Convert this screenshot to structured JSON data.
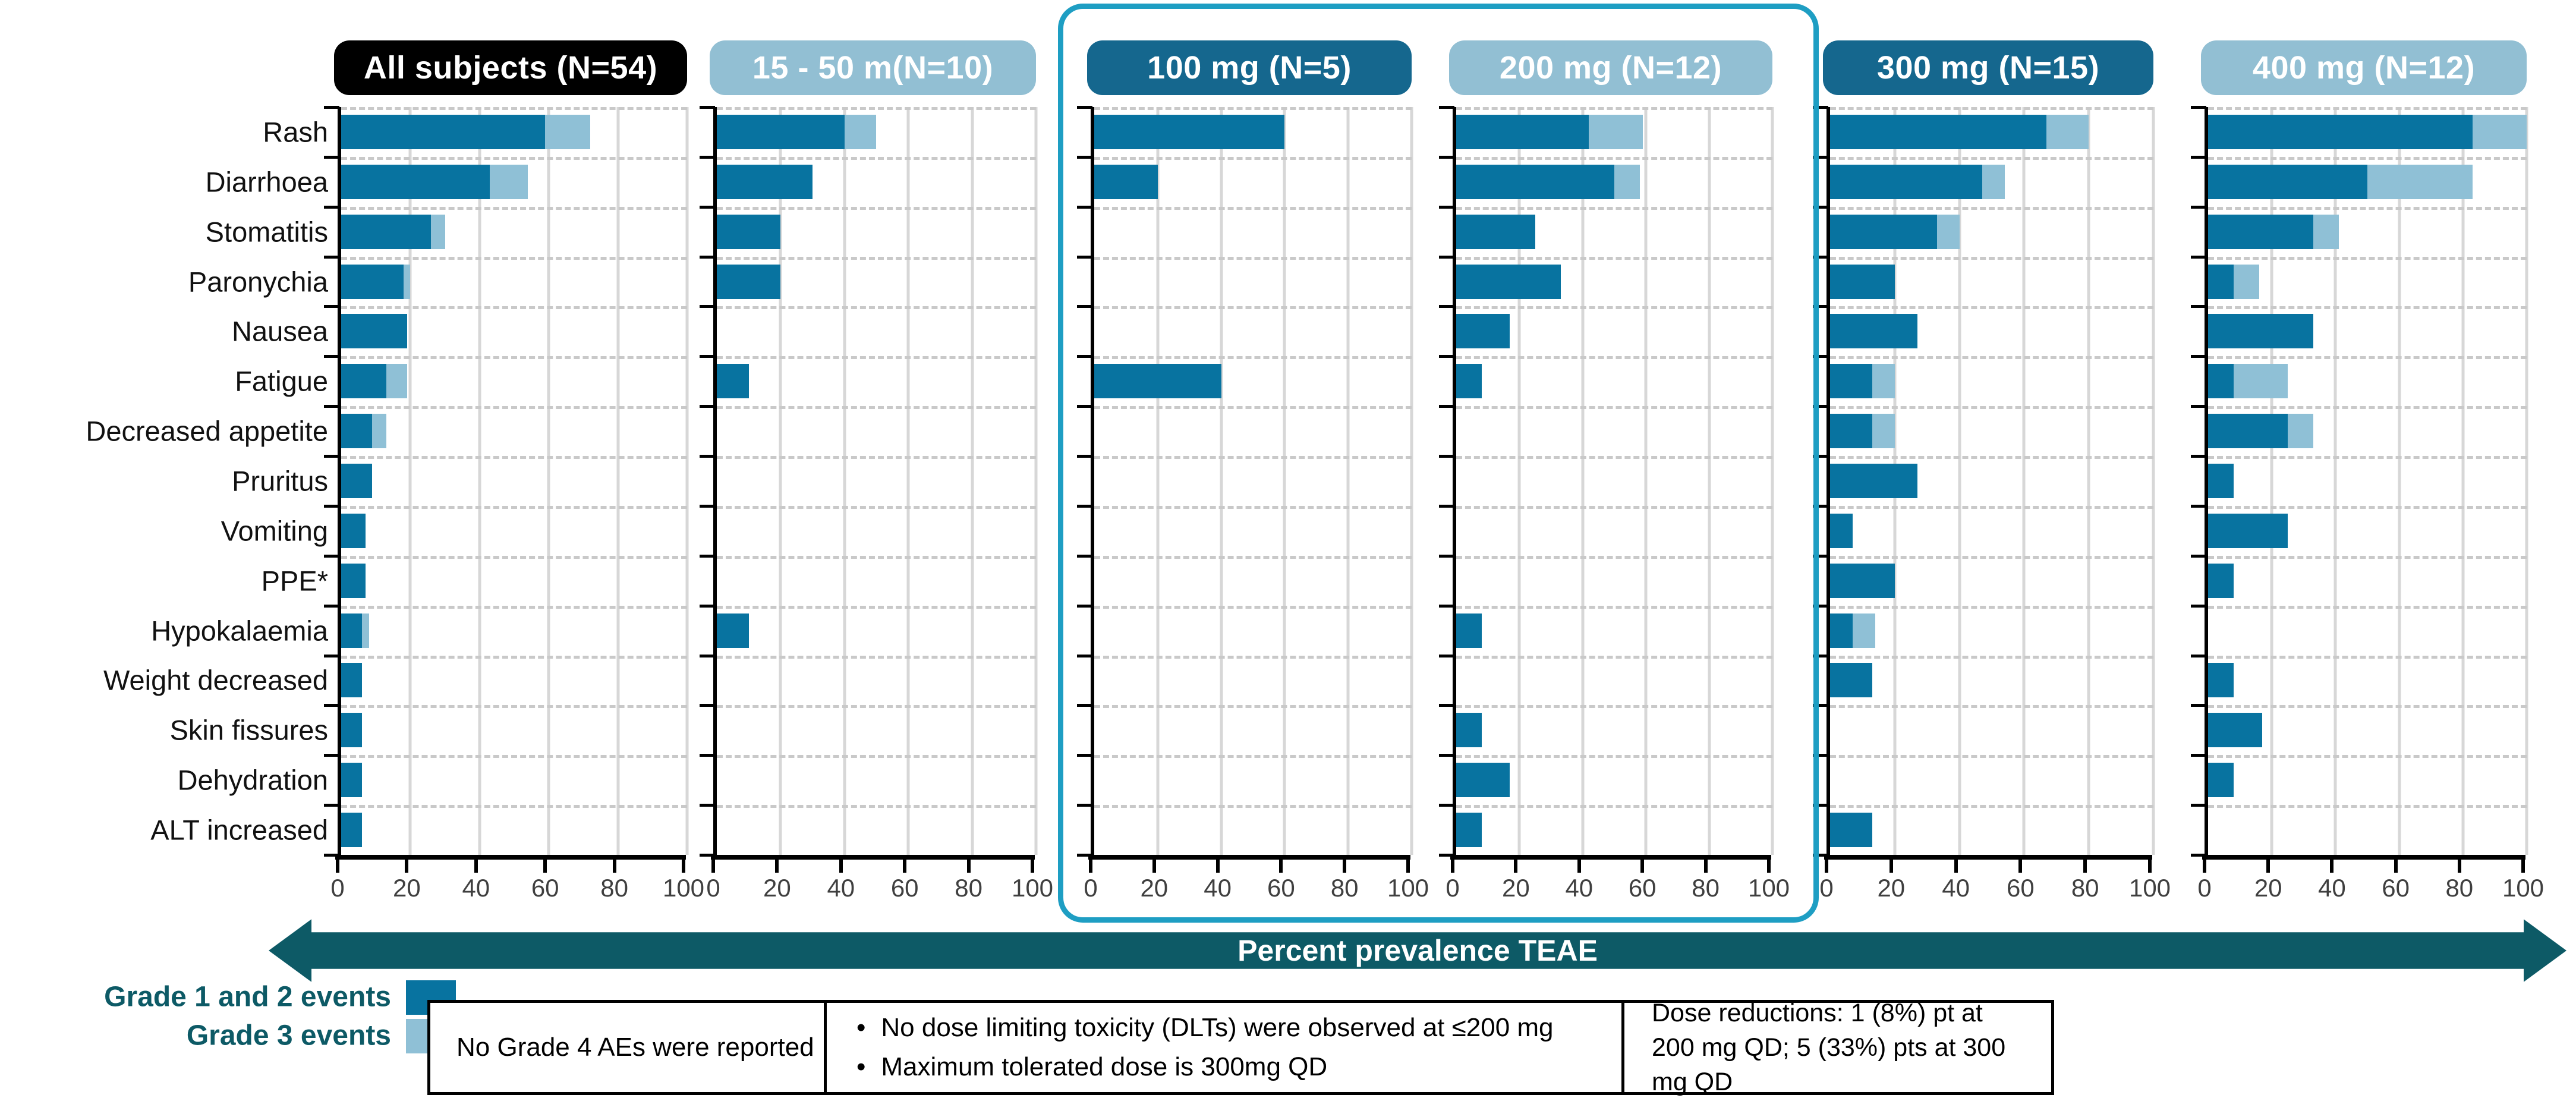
{
  "chart_data": {
    "type": "bar",
    "orientation": "horizontal-stacked",
    "xlim": [
      0,
      100
    ],
    "x_ticks": [
      0,
      20,
      40,
      60,
      80,
      100
    ],
    "grid": "vertical-solid-horizontal-dashed",
    "axis_arrow_label": "Percent prevalence TEAE",
    "series_names": [
      "Grade 1 and 2 events",
      "Grade 3 events"
    ],
    "categories": [
      "Rash",
      "Diarrhoea",
      "Stomatitis",
      "Paronychia",
      "Nausea",
      "Fatigue",
      "Decreased appetite",
      "Pruritus",
      "Vomiting",
      "PPE*",
      "Hypokalaemia",
      "Weight decreased",
      "Skin fissures",
      "Dehydration",
      "ALT increased"
    ],
    "panels": [
      {
        "title": "All subjects (N=54)",
        "header_style": "black",
        "highlighted": false,
        "grade_1_2": [
          59,
          43,
          26,
          18,
          19,
          13,
          9,
          9,
          7,
          7,
          6,
          6,
          6,
          6,
          6
        ],
        "grade_3": [
          13,
          11,
          4,
          2,
          0,
          6,
          4,
          0,
          0,
          0,
          2,
          0,
          0,
          0,
          0
        ]
      },
      {
        "title": "15 - 50 m(N=10)",
        "header_style": "light",
        "highlighted": false,
        "grade_1_2": [
          40,
          30,
          20,
          20,
          0,
          10,
          0,
          0,
          0,
          0,
          10,
          0,
          0,
          0,
          0
        ],
        "grade_3": [
          10,
          0,
          0,
          0,
          0,
          0,
          0,
          0,
          0,
          0,
          0,
          0,
          0,
          0,
          0
        ]
      },
      {
        "title": "100 mg (N=5)",
        "header_style": "dark",
        "highlighted": true,
        "grade_1_2": [
          60,
          20,
          0,
          0,
          0,
          40,
          0,
          0,
          0,
          0,
          0,
          0,
          0,
          0,
          0
        ],
        "grade_3": [
          0,
          0,
          0,
          0,
          0,
          0,
          0,
          0,
          0,
          0,
          0,
          0,
          0,
          0,
          0
        ]
      },
      {
        "title": "200 mg (N=12)",
        "header_style": "light",
        "highlighted": true,
        "grade_1_2": [
          42,
          50,
          25,
          33,
          17,
          8,
          0,
          0,
          0,
          0,
          8,
          0,
          8,
          17,
          8
        ],
        "grade_3": [
          17,
          8,
          0,
          0,
          0,
          0,
          0,
          0,
          0,
          0,
          0,
          0,
          0,
          0,
          0
        ]
      },
      {
        "title": "300 mg (N=15)",
        "header_style": "dark",
        "highlighted": false,
        "grade_1_2": [
          67,
          47,
          33,
          20,
          27,
          13,
          13,
          27,
          7,
          20,
          7,
          13,
          0,
          0,
          13
        ],
        "grade_3": [
          13,
          7,
          7,
          0,
          0,
          7,
          7,
          0,
          0,
          0,
          7,
          0,
          0,
          0,
          0
        ]
      },
      {
        "title": "400 mg (N=12)",
        "header_style": "light",
        "highlighted": false,
        "grade_1_2": [
          83,
          50,
          33,
          8,
          33,
          8,
          25,
          8,
          25,
          8,
          0,
          8,
          17,
          8,
          0
        ],
        "grade_3": [
          17,
          33,
          8,
          8,
          0,
          17,
          8,
          0,
          0,
          0,
          0,
          0,
          0,
          0,
          0
        ]
      }
    ]
  },
  "legend": {
    "items": [
      {
        "label": "Grade 1 and 2 events",
        "color": "#0873A0"
      },
      {
        "label": "Grade 3 events",
        "color": "#8FC0D6"
      }
    ]
  },
  "arrow_label": "Percent prevalence TEAE",
  "notes": {
    "box1": "No Grade 4 AEs were reported",
    "box2_bullets": [
      "No dose limiting toxicity (DLTs) were observed at ≤200 mg",
      "Maximum tolerated dose is 300mg QD"
    ],
    "bullet_glyph": "•",
    "box3": "Dose reductions: 1 (8%) pt at 200 mg QD; 5 (33%) pts at 300 mg QD"
  },
  "colors": {
    "bar_grade_1_2": "#0873A0",
    "bar_grade_3": "#8FC0D6",
    "header_black": "#000000",
    "header_dark": "#15678E",
    "header_light": "#92BFD3",
    "highlight_border": "#1E9EC3",
    "arrow_teal": "#0D5A66",
    "legend_text": "#0D5A66"
  }
}
